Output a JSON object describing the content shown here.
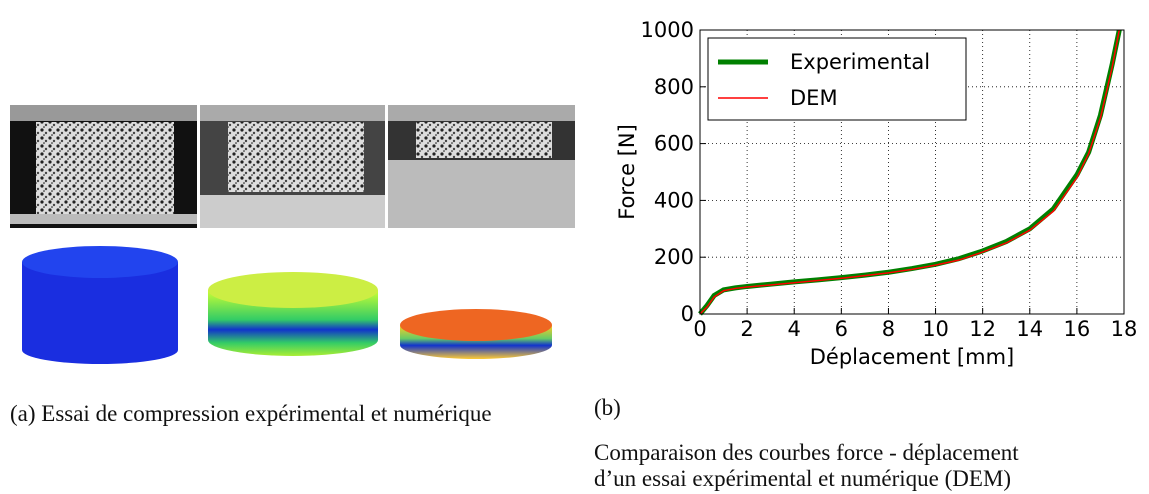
{
  "captions": {
    "panel_a": "(a) Essai de compression expérimental et numérique",
    "panel_b_label": "(b)",
    "panel_b_lines": [
      "Comparaison des courbes force - déplacement",
      "d’un essai expérimental et numérique (DEM)"
    ]
  },
  "chart_data": {
    "type": "line",
    "x_label": "Déplacement [mm]",
    "y_label": "Force [N]",
    "xlim": [
      0,
      18
    ],
    "ylim": [
      0,
      1000
    ],
    "xticks": [
      0,
      2,
      4,
      6,
      8,
      10,
      12,
      14,
      16,
      18
    ],
    "yticks": [
      0,
      200,
      400,
      600,
      800,
      1000
    ],
    "grid": true,
    "legend": "upper-left",
    "x": [
      0,
      0.3,
      0.6,
      1,
      1.5,
      2,
      3,
      4,
      5,
      6,
      7,
      8,
      9,
      10,
      11,
      12,
      13,
      14,
      15,
      16,
      16.5,
      17,
      17.5,
      17.8
    ],
    "series": [
      {
        "name": "Experimental",
        "color": "#008000",
        "width": 5,
        "values": [
          0,
          30,
          65,
          85,
          92,
          97,
          105,
          113,
          120,
          128,
          137,
          147,
          160,
          175,
          195,
          222,
          255,
          300,
          370,
          490,
          570,
          700,
          880,
          1000
        ]
      },
      {
        "name": "DEM",
        "color": "#ff0000",
        "width": 1.5,
        "values": [
          0,
          25,
          60,
          82,
          90,
          95,
          102,
          110,
          118,
          126,
          135,
          145,
          157,
          172,
          190,
          218,
          250,
          295,
          362,
          480,
          565,
          690,
          870,
          1000
        ]
      }
    ]
  }
}
